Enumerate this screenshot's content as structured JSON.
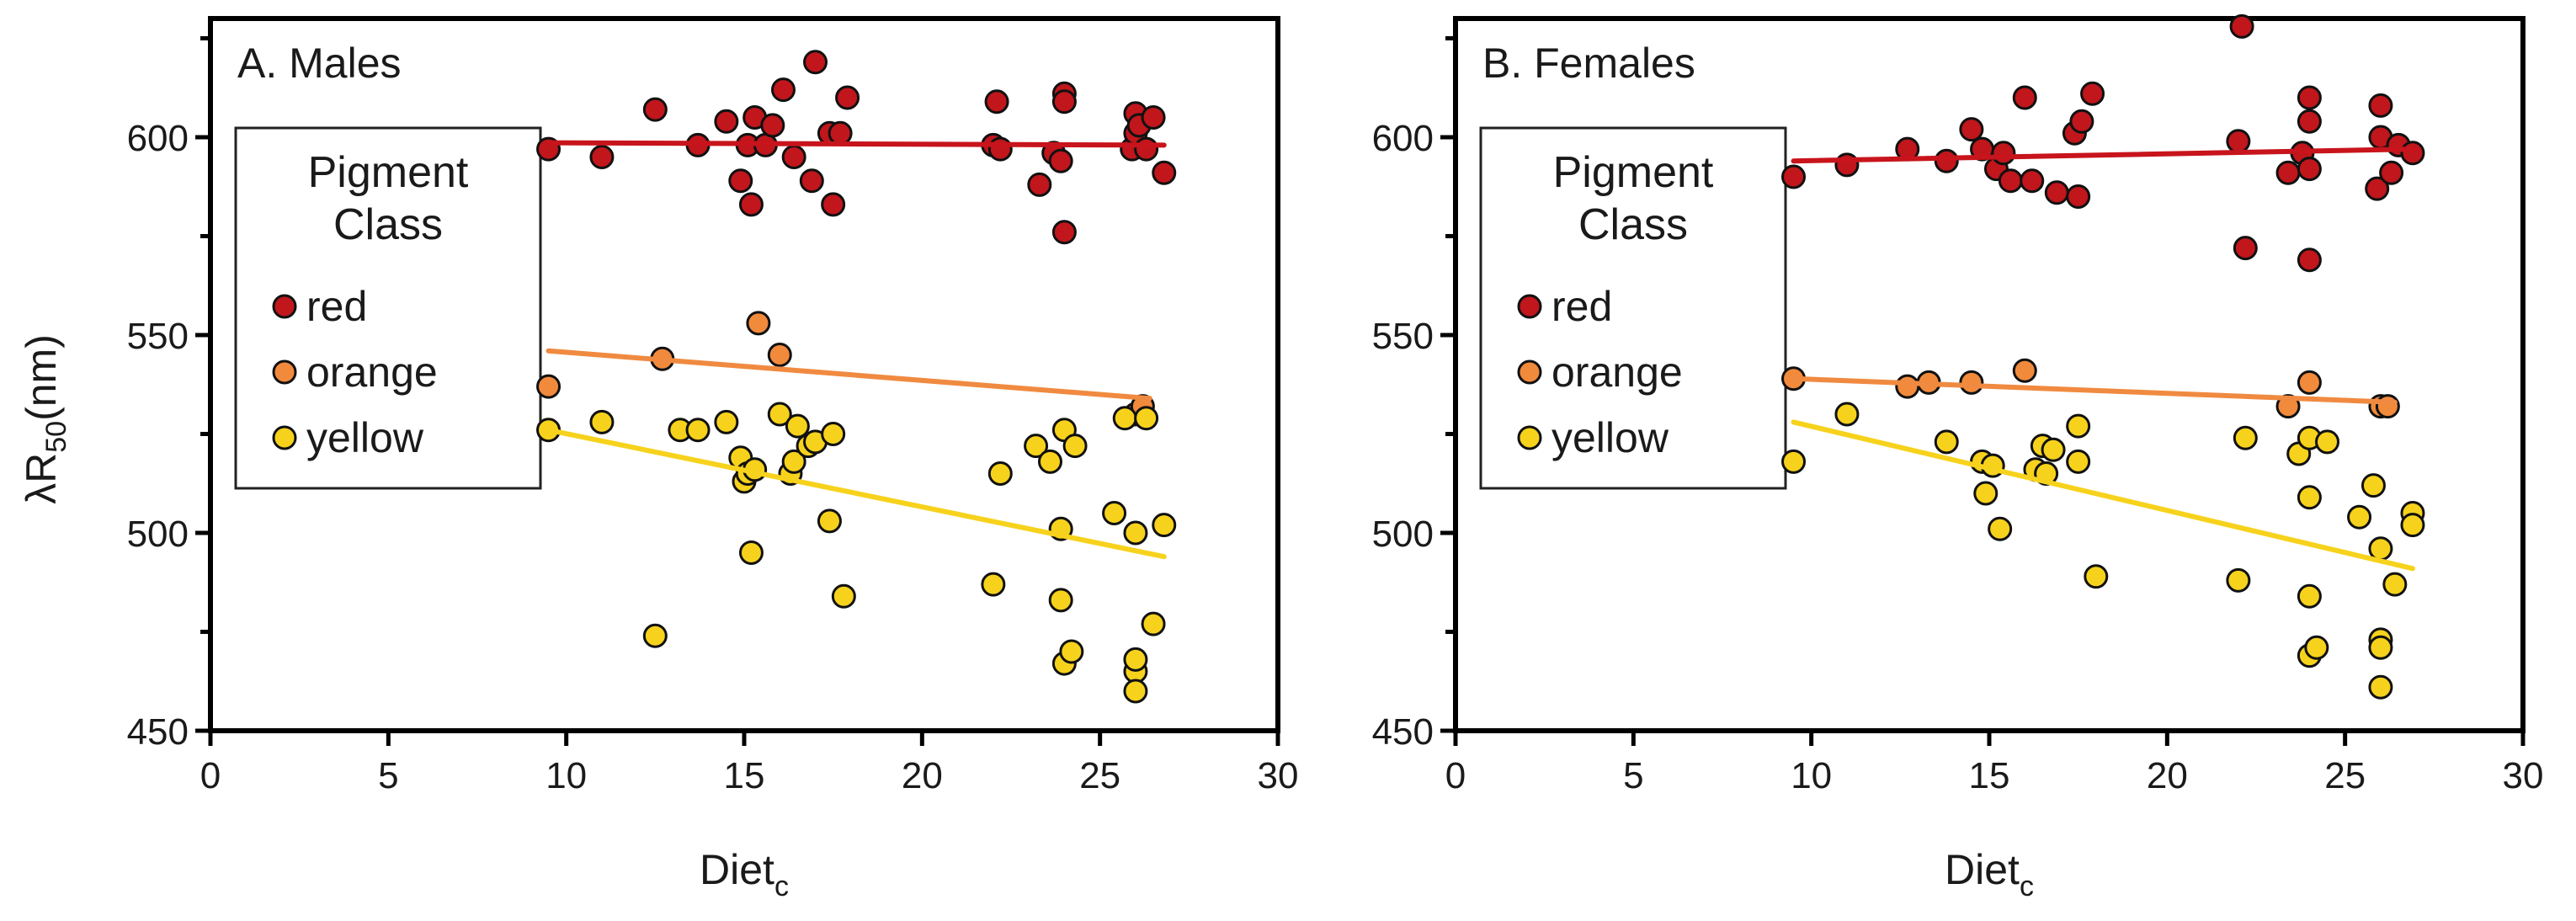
{
  "figure": {
    "ylabel_main": "λR",
    "ylabel_sub": "50",
    "ylabel_unit": "(nm)"
  },
  "colors": {
    "red": "#c0161c",
    "orange": "#f28a3c",
    "yellow": "#f7d21c",
    "red_line": "#c8141c",
    "orange_line": "#f08a40",
    "yellow_line": "#f7d21c",
    "axis": "#000000"
  },
  "chart_data": [
    {
      "type": "scatter",
      "title": "A. Males",
      "xlabel_main": "Diet",
      "xlabel_sub": "c",
      "xlim": [
        0,
        30
      ],
      "ylim": [
        450,
        630
      ],
      "xticks": [
        0,
        5,
        10,
        15,
        20,
        25,
        30
      ],
      "yticks": [
        450,
        500,
        550,
        600
      ],
      "legend": {
        "title_line1": "Pigment",
        "title_line2": "Class",
        "entries": [
          "red",
          "orange",
          "yellow"
        ],
        "placement": "upper-left"
      },
      "series": [
        {
          "name": "red",
          "points": [
            [
              9.5,
              597
            ],
            [
              11,
              595
            ],
            [
              12.5,
              607
            ],
            [
              13.7,
              598
            ],
            [
              14.5,
              604
            ],
            [
              14.9,
              589
            ],
            [
              15.1,
              598
            ],
            [
              15.2,
              583
            ],
            [
              15.3,
              605
            ],
            [
              15.6,
              598
            ],
            [
              15.8,
              603
            ],
            [
              16.1,
              612
            ],
            [
              16.4,
              595
            ],
            [
              16.9,
              589
            ],
            [
              17.0,
              619
            ],
            [
              17.4,
              601
            ],
            [
              17.5,
              583
            ],
            [
              17.7,
              601
            ],
            [
              17.9,
              610
            ],
            [
              22.0,
              598
            ],
            [
              22.1,
              609
            ],
            [
              22.2,
              597
            ],
            [
              23.3,
              588
            ],
            [
              23.7,
              596
            ],
            [
              23.9,
              594
            ],
            [
              24.0,
              611
            ],
            [
              24.0,
              609
            ],
            [
              24.0,
              576
            ],
            [
              25.9,
              597
            ],
            [
              26.0,
              606
            ],
            [
              26.0,
              601
            ],
            [
              26.1,
              603
            ],
            [
              26.3,
              597
            ],
            [
              26.5,
              605
            ],
            [
              26.8,
              591
            ]
          ],
          "trend": [
            [
              9.5,
              598.6
            ],
            [
              26.8,
              598.0
            ]
          ]
        },
        {
          "name": "orange",
          "points": [
            [
              9.5,
              537
            ],
            [
              12.7,
              544
            ],
            [
              15.4,
              553
            ],
            [
              16.0,
              545
            ],
            [
              26.0,
              530
            ],
            [
              26.2,
              532
            ]
          ],
          "trend": [
            [
              9.5,
              546
            ],
            [
              26.4,
              534
            ]
          ]
        },
        {
          "name": "yellow",
          "points": [
            [
              9.5,
              526
            ],
            [
              11,
              528
            ],
            [
              12.5,
              474
            ],
            [
              13.2,
              526
            ],
            [
              13.7,
              526
            ],
            [
              14.5,
              528
            ],
            [
              14.9,
              519
            ],
            [
              15.0,
              513
            ],
            [
              15.1,
              515
            ],
            [
              15.2,
              495
            ],
            [
              15.3,
              516
            ],
            [
              16.0,
              530
            ],
            [
              16.3,
              515
            ],
            [
              16.4,
              518
            ],
            [
              16.5,
              527
            ],
            [
              16.8,
              522
            ],
            [
              17.0,
              523
            ],
            [
              17.4,
              503
            ],
            [
              17.5,
              525
            ],
            [
              17.8,
              484
            ],
            [
              22.0,
              487
            ],
            [
              22.2,
              515
            ],
            [
              23.2,
              522
            ],
            [
              23.6,
              518
            ],
            [
              23.9,
              483
            ],
            [
              23.9,
              501
            ],
            [
              24.0,
              526
            ],
            [
              24.0,
              467
            ],
            [
              24.2,
              470
            ],
            [
              24.3,
              522
            ],
            [
              25.4,
              505
            ],
            [
              25.7,
              529
            ],
            [
              26.0,
              465
            ],
            [
              26.0,
              468
            ],
            [
              26.0,
              460
            ],
            [
              26.0,
              500
            ],
            [
              26.3,
              529
            ],
            [
              26.5,
              477
            ],
            [
              26.8,
              502
            ]
          ],
          "trend": [
            [
              9.5,
              526
            ],
            [
              26.8,
              494
            ]
          ]
        }
      ]
    },
    {
      "type": "scatter",
      "title": "B. Females",
      "xlabel_main": "Diet",
      "xlabel_sub": "c",
      "xlim": [
        0,
        30
      ],
      "ylim": [
        450,
        630
      ],
      "xticks": [
        0,
        5,
        10,
        15,
        20,
        25,
        30
      ],
      "yticks": [
        450,
        500,
        550,
        600
      ],
      "legend": {
        "title_line1": "Pigment",
        "title_line2": "Class",
        "entries": [
          "red",
          "orange",
          "yellow"
        ],
        "placement": "upper-left"
      },
      "series": [
        {
          "name": "red",
          "points": [
            [
              9.5,
              590
            ],
            [
              11,
              593
            ],
            [
              12.7,
              597
            ],
            [
              13.8,
              594
            ],
            [
              14.5,
              602
            ],
            [
              14.8,
              597
            ],
            [
              15.2,
              592
            ],
            [
              15.4,
              596
            ],
            [
              15.6,
              589
            ],
            [
              16.0,
              610
            ],
            [
              16.2,
              589
            ],
            [
              16.9,
              586
            ],
            [
              17.4,
              601
            ],
            [
              17.5,
              585
            ],
            [
              17.6,
              604
            ],
            [
              17.9,
              611
            ],
            [
              22.0,
              599
            ],
            [
              22.1,
              628
            ],
            [
              22.2,
              572
            ],
            [
              23.4,
              591
            ],
            [
              23.8,
              596
            ],
            [
              24.0,
              592
            ],
            [
              24.0,
              610
            ],
            [
              24.0,
              604
            ],
            [
              24.0,
              569
            ],
            [
              25.9,
              587
            ],
            [
              26.0,
              608
            ],
            [
              26.0,
              600
            ],
            [
              26.3,
              591
            ],
            [
              26.5,
              598
            ],
            [
              26.9,
              596
            ]
          ],
          "trend": [
            [
              9.5,
              594
            ],
            [
              26.9,
              597
            ]
          ]
        },
        {
          "name": "orange",
          "points": [
            [
              9.5,
              539
            ],
            [
              12.7,
              537
            ],
            [
              13.3,
              538
            ],
            [
              14.5,
              538
            ],
            [
              16.0,
              541
            ],
            [
              23.4,
              532
            ],
            [
              24.0,
              538
            ],
            [
              26.0,
              532
            ],
            [
              26.2,
              532
            ]
          ],
          "trend": [
            [
              9.5,
              539
            ],
            [
              26.4,
              533
            ]
          ]
        },
        {
          "name": "yellow",
          "points": [
            [
              9.5,
              518
            ],
            [
              11,
              530
            ],
            [
              13.8,
              523
            ],
            [
              14.8,
              518
            ],
            [
              14.9,
              510
            ],
            [
              15.1,
              517
            ],
            [
              15.3,
              501
            ],
            [
              16.3,
              516
            ],
            [
              16.5,
              522
            ],
            [
              16.6,
              515
            ],
            [
              16.8,
              521
            ],
            [
              17.5,
              527
            ],
            [
              17.5,
              518
            ],
            [
              18.0,
              489
            ],
            [
              22.0,
              488
            ],
            [
              22.2,
              524
            ],
            [
              23.7,
              520
            ],
            [
              24.0,
              484
            ],
            [
              24.0,
              509
            ],
            [
              24.0,
              524
            ],
            [
              24.0,
              469
            ],
            [
              24.2,
              471
            ],
            [
              24.5,
              523
            ],
            [
              25.4,
              504
            ],
            [
              25.8,
              512
            ],
            [
              26.0,
              496
            ],
            [
              26.0,
              473
            ],
            [
              26.0,
              471
            ],
            [
              26.0,
              461
            ],
            [
              26.4,
              487
            ],
            [
              26.9,
              505
            ],
            [
              26.9,
              502
            ]
          ],
          "trend": [
            [
              9.5,
              528
            ],
            [
              26.9,
              491
            ]
          ]
        }
      ]
    }
  ]
}
